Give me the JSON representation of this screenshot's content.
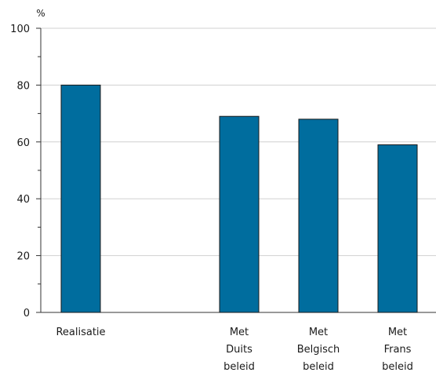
{
  "chart_data": {
    "type": "bar",
    "unit_label": "%",
    "categories": [
      [
        "Realisatie"
      ],
      [
        "Met",
        "Duits",
        "beleid"
      ],
      [
        "Met",
        "Belgisch",
        "beleid"
      ],
      [
        "Met",
        "Frans",
        "beleid"
      ]
    ],
    "values": [
      80,
      69,
      68,
      59
    ],
    "ylim": [
      0,
      100
    ],
    "yticks": [
      0,
      20,
      40,
      60,
      80,
      100
    ],
    "grid": true,
    "bar_color": "#006d9e"
  }
}
